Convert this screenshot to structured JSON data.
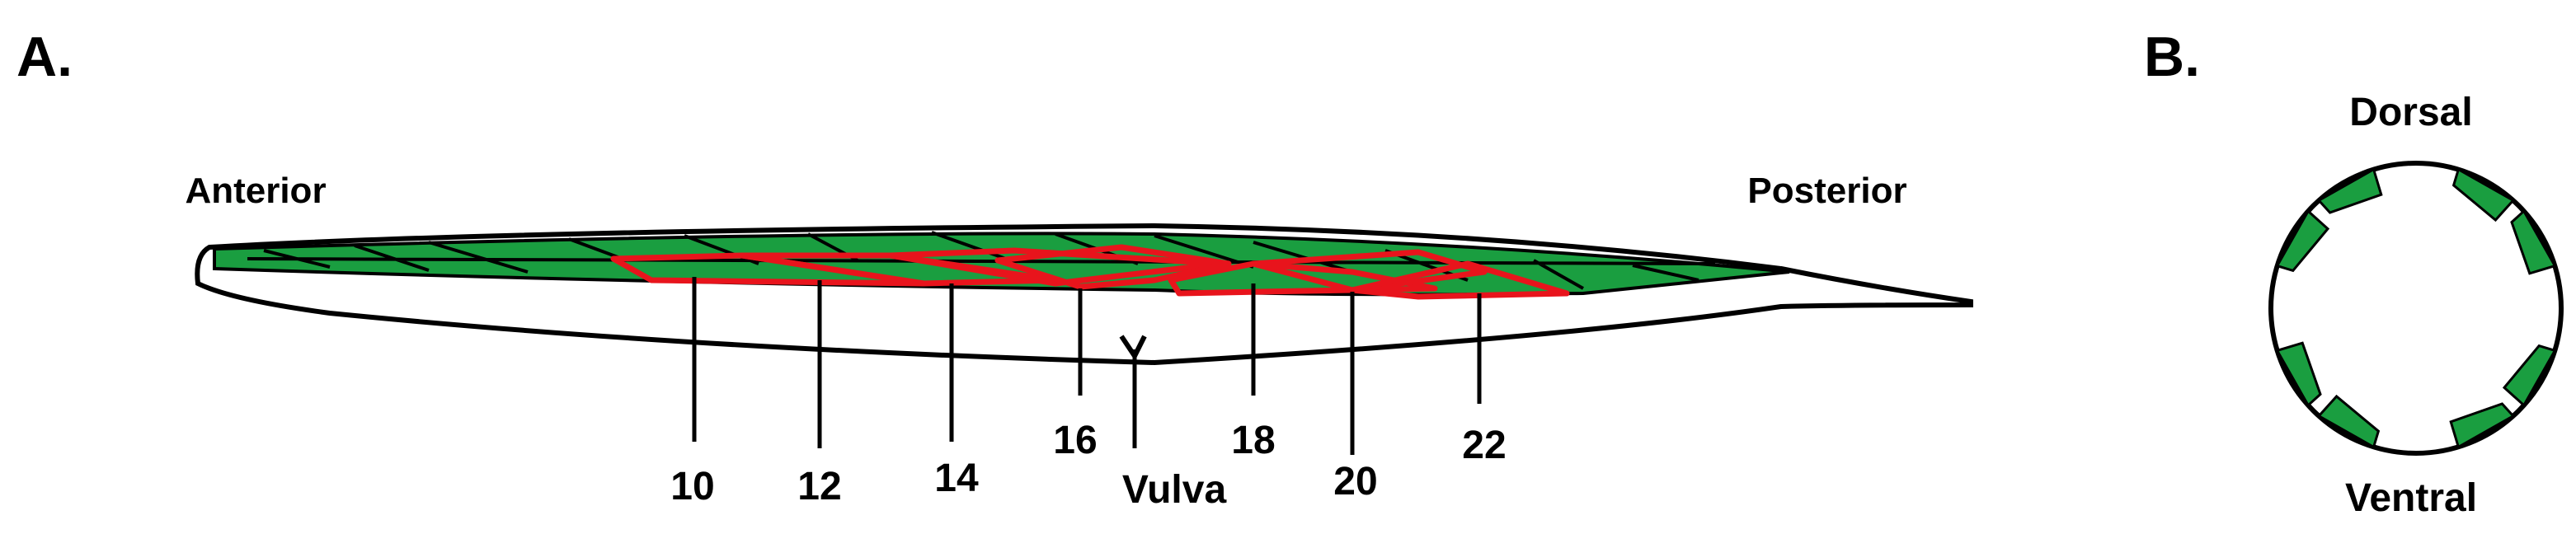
{
  "panel_a": {
    "label": "A.",
    "anterior": "Anterior",
    "posterior": "Posterior",
    "markers": [
      "10",
      "12",
      "14",
      "16",
      "18",
      "20",
      "22"
    ],
    "vulva": "Vulva"
  },
  "panel_b": {
    "label": "B.",
    "dorsal": "Dorsal",
    "ventral": "Ventral"
  }
}
